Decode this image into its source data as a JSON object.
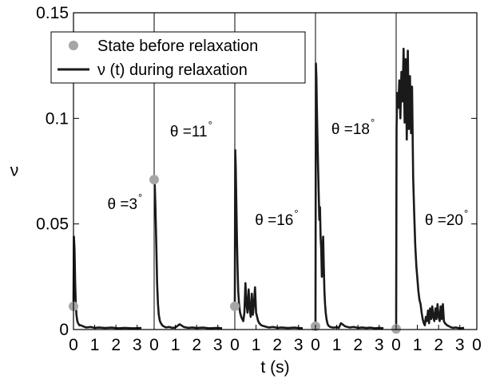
{
  "chart_data": {
    "type": "line",
    "title": "",
    "xlabel": "t (s)",
    "ylabel": "ν",
    "ylim": [
      0,
      0.15
    ],
    "yticks": [
      0,
      0.05,
      0.1,
      0.15
    ],
    "ytick_labels": [
      "0",
      "0.05",
      "0.1",
      "0.15"
    ],
    "grid": false,
    "legend_placement": "top-left",
    "legend": {
      "marker_label": "State before relaxation",
      "line_label": "ν (t) during relaxation",
      "marker_color": "#a6a6a6",
      "line_color": "#1a1a1a"
    },
    "panel_xtick_labels": [
      "0",
      "1",
      "2",
      "3"
    ],
    "last_xtick_label": "0",
    "panels": [
      {
        "annotation": "θ =3",
        "annotation_sup": "°",
        "state_before": 0.011,
        "series": {
          "t": [
            0,
            0.02,
            0.05,
            0.08,
            0.11,
            0.14,
            0.18,
            0.22,
            0.28,
            0.35,
            0.45,
            0.6,
            0.8,
            1.0,
            1.2,
            1.5,
            1.8,
            2.1,
            2.4,
            2.8,
            3.2
          ],
          "v": [
            0.011,
            0.044,
            0.038,
            0.022,
            0.012,
            0.007,
            0.004,
            0.003,
            0.002,
            0.002,
            0.0015,
            0.001,
            0.0012,
            0.0008,
            0.001,
            0.0007,
            0.0009,
            0.0006,
            0.0008,
            0.0006,
            0.0007
          ]
        }
      },
      {
        "annotation": "θ =11",
        "annotation_sup": "°",
        "state_before": 0.071,
        "series": {
          "t": [
            0,
            0.03,
            0.06,
            0.1,
            0.14,
            0.18,
            0.22,
            0.27,
            0.32,
            0.38,
            0.45,
            0.55,
            0.7,
            0.85,
            1.0,
            1.2,
            1.4,
            1.6,
            1.8,
            2.0,
            2.3,
            2.6,
            3.0,
            3.2
          ],
          "v": [
            0.071,
            0.068,
            0.058,
            0.04,
            0.022,
            0.012,
            0.007,
            0.004,
            0.003,
            0.002,
            0.0015,
            0.001,
            0.0012,
            0.0008,
            0.001,
            0.0025,
            0.0012,
            0.0008,
            0.001,
            0.0007,
            0.0009,
            0.0006,
            0.0008,
            0.0006
          ]
        }
      },
      {
        "annotation": "θ =16",
        "annotation_sup": "°",
        "state_before": 0.011,
        "series": {
          "t": [
            0,
            0.02,
            0.04,
            0.07,
            0.1,
            0.13,
            0.16,
            0.2,
            0.25,
            0.3,
            0.35,
            0.4,
            0.45,
            0.5,
            0.55,
            0.6,
            0.65,
            0.7,
            0.75,
            0.8,
            0.85,
            0.9,
            0.95,
            1.0,
            1.05,
            1.1,
            1.15,
            1.2,
            1.25,
            1.3,
            1.4,
            1.5,
            1.6,
            1.8,
            2.0,
            2.2,
            2.5,
            2.8,
            3.2
          ],
          "v": [
            0.011,
            0.085,
            0.078,
            0.06,
            0.042,
            0.028,
            0.018,
            0.012,
            0.008,
            0.006,
            0.005,
            0.004,
            0.008,
            0.022,
            0.012,
            0.008,
            0.019,
            0.01,
            0.006,
            0.017,
            0.007,
            0.012,
            0.02,
            0.008,
            0.006,
            0.004,
            0.003,
            0.0025,
            0.002,
            0.0018,
            0.0015,
            0.0012,
            0.001,
            0.0012,
            0.0008,
            0.001,
            0.0007,
            0.0009,
            0.0006
          ]
        }
      },
      {
        "annotation": "θ =18",
        "annotation_sup": "°",
        "state_before": 0.0015,
        "series": {
          "t": [
            0,
            0.02,
            0.04,
            0.06,
            0.09,
            0.12,
            0.15,
            0.18,
            0.21,
            0.24,
            0.27,
            0.3,
            0.33,
            0.36,
            0.39,
            0.42,
            0.45,
            0.48,
            0.52,
            0.56,
            0.6,
            0.65,
            0.7,
            0.8,
            0.9,
            1.0,
            1.1,
            1.2,
            1.4,
            1.6,
            1.8,
            2.0,
            2.2,
            2.4,
            2.6,
            2.8,
            3.0,
            3.2
          ],
          "v": [
            0.0015,
            0.126,
            0.12,
            0.108,
            0.092,
            0.078,
            0.065,
            0.052,
            0.058,
            0.044,
            0.038,
            0.025,
            0.036,
            0.044,
            0.03,
            0.018,
            0.012,
            0.008,
            0.005,
            0.003,
            0.002,
            0.0015,
            0.0012,
            0.001,
            0.0009,
            0.0012,
            0.0008,
            0.003,
            0.0015,
            0.001,
            0.0012,
            0.0008,
            0.001,
            0.0007,
            0.0009,
            0.0006,
            0.0008,
            0.0006
          ]
        }
      },
      {
        "annotation": "θ =20",
        "annotation_sup": "°",
        "state_before": 0.0003,
        "series": {
          "t": [
            0,
            0.02,
            0.05,
            0.1,
            0.15,
            0.2,
            0.25,
            0.3,
            0.35,
            0.4,
            0.45,
            0.5,
            0.55,
            0.6,
            0.65,
            0.7,
            0.75,
            0.8,
            0.85,
            0.9,
            0.95,
            1.0,
            1.05,
            1.1,
            1.15,
            1.2,
            1.25,
            1.3,
            1.35,
            1.4,
            1.45,
            1.5,
            1.55,
            1.6,
            1.65,
            1.7,
            1.75,
            1.8,
            1.85,
            1.9,
            1.95,
            2.0,
            2.05,
            2.1,
            2.15,
            2.2,
            2.25,
            2.3,
            2.4,
            2.5,
            2.6,
            2.7,
            2.8,
            3.0,
            3.2
          ],
          "v": [
            0.0003,
            0.095,
            0.112,
            0.105,
            0.118,
            0.1,
            0.122,
            0.108,
            0.133,
            0.098,
            0.128,
            0.09,
            0.132,
            0.095,
            0.12,
            0.093,
            0.115,
            0.072,
            0.055,
            0.04,
            0.03,
            0.024,
            0.018,
            0.014,
            0.012,
            0.008,
            0.005,
            0.003,
            0.002,
            0.006,
            0.004,
            0.009,
            0.003,
            0.01,
            0.005,
            0.011,
            0.006,
            0.004,
            0.01,
            0.005,
            0.012,
            0.006,
            0.004,
            0.011,
            0.005,
            0.012,
            0.004,
            0.003,
            0.002,
            0.0015,
            0.001,
            0.0008,
            0.001,
            0.0006,
            0.0008
          ]
        }
      }
    ]
  }
}
